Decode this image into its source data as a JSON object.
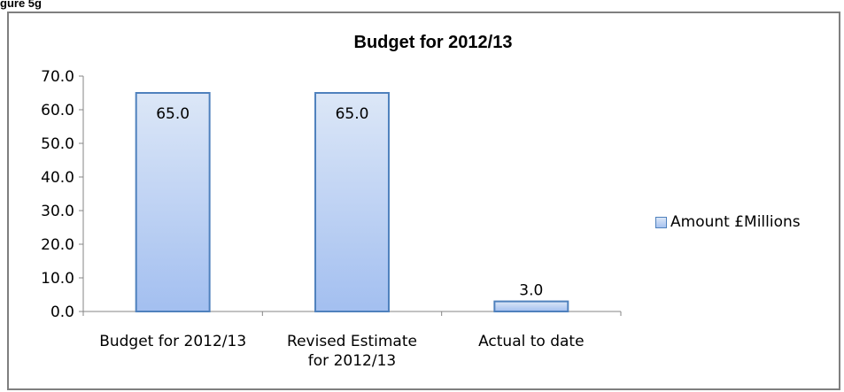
{
  "header": {
    "text": "gure 5g"
  },
  "chart_data": {
    "type": "bar",
    "title": "Budget for 2012/13",
    "categories": [
      [
        "Budget for 2012/13"
      ],
      [
        "Revised Estimate",
        "for 2012/13"
      ],
      [
        "Actual to date"
      ]
    ],
    "series": [
      {
        "name": "Amount £Millions",
        "values": [
          65.0,
          65.0,
          3.0
        ]
      }
    ],
    "data_labels": [
      "65.0",
      "65.0",
      "3.0"
    ],
    "y_ticks": [
      "0.0",
      "10.0",
      "20.0",
      "30.0",
      "40.0",
      "50.0",
      "60.0",
      "70.0"
    ],
    "ylim": [
      0,
      70
    ],
    "legend_position": "right",
    "grid": false,
    "colors": {
      "bar_top": "#dce7f7",
      "bar_bottom": "#a3bff0",
      "bar_border": "#4f81bd",
      "axis": "#868686"
    }
  }
}
